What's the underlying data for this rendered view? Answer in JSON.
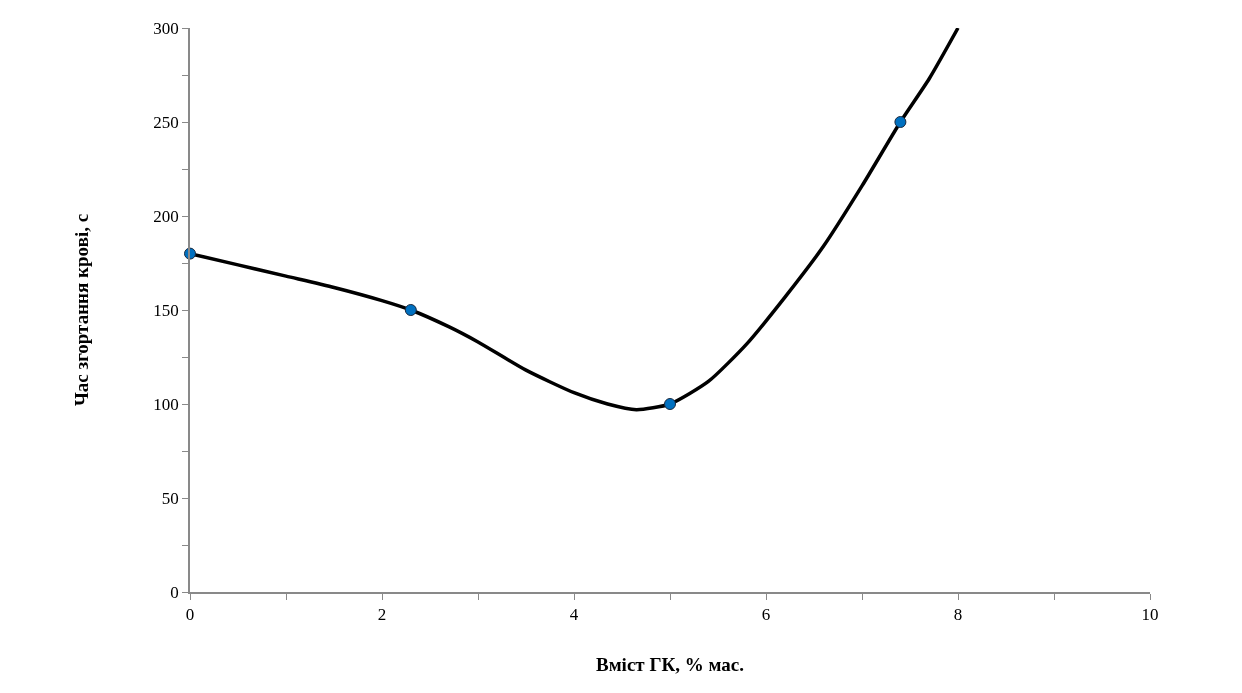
{
  "chart_data": {
    "type": "line",
    "xlabel": "Вміст ГК, % мас.",
    "ylabel": "Час згортання крові, с",
    "xlim": [
      0,
      10
    ],
    "xticks": [
      0,
      {
        "value": 1,
        "label": null
      },
      2,
      {
        "value": 3,
        "label": null
      },
      4,
      {
        "value": 5,
        "label": null
      },
      6,
      {
        "value": 7,
        "label": null
      },
      8,
      {
        "value": 9,
        "label": null
      },
      10
    ],
    "ylim": [
      0,
      300
    ],
    "yticks": [
      0,
      {
        "value": 25,
        "label": null
      },
      50,
      {
        "value": 75,
        "label": null
      },
      100,
      {
        "value": 125,
        "label": null
      },
      150,
      {
        "value": 175,
        "label": null
      },
      200,
      {
        "value": 225,
        "label": null
      },
      250,
      {
        "value": 275,
        "label": null
      },
      300
    ],
    "grid": false,
    "series": [
      {
        "color": "#000000",
        "marker": "none",
        "line_style": "solid",
        "x": [
          0,
          0.5,
          1,
          1.5,
          2,
          2.3,
          2.7,
          3,
          3.5,
          4,
          4.35,
          4.65,
          5,
          5.4,
          5.8,
          6.2,
          6.6,
          7,
          7.4,
          7.7,
          8
        ],
        "values": [
          180,
          174,
          168,
          162,
          155,
          150,
          141,
          133,
          118,
          106,
          100,
          97,
          100,
          112,
          132,
          157,
          184,
          216,
          250,
          273,
          300
        ]
      },
      {
        "type": "scatter",
        "color": "#0070c0",
        "marker": "circle",
        "x": [
          0,
          2.3,
          5,
          7.4
        ],
        "values": [
          180,
          150,
          100,
          250
        ]
      }
    ]
  }
}
